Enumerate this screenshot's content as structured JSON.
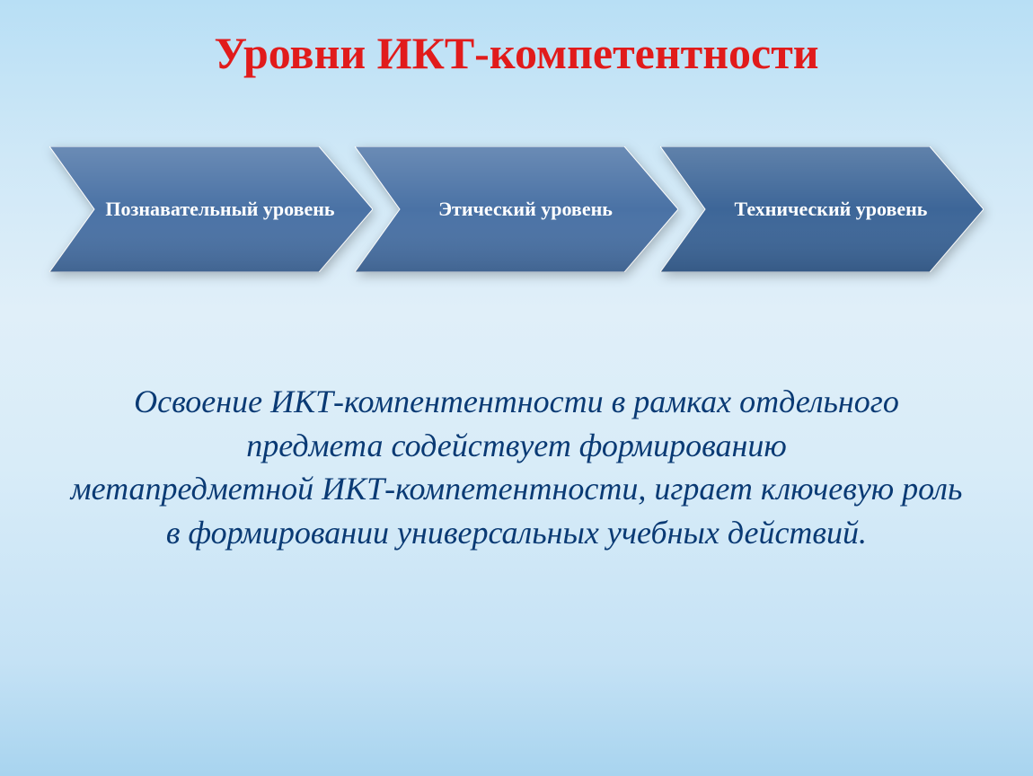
{
  "title": {
    "text": "Уровни ИКТ-компетентности",
    "color": "#e11b1b",
    "fontsize": 50
  },
  "arrows": {
    "items": [
      {
        "label": "Познавательный уровень",
        "fill": "#4a72a5"
      },
      {
        "label": "Этический уровень",
        "fill": "#4a72a5"
      },
      {
        "label": "Технический уровень",
        "fill": "#3d6698"
      }
    ],
    "label_color": "#ffffff",
    "label_fontsize": 22,
    "arrow_width": 360,
    "arrow_height": 140,
    "notch_depth": 50,
    "point_depth": 60,
    "overlap": 20
  },
  "body": {
    "text": "Освоение ИКТ-компентентности в рамках отдельного предмета содействует формированию\nметапредметной ИКТ-компетентности, играет ключевую роль в формировании универсальных учебных действий.",
    "color": "#0a3a74",
    "fontsize": 36
  },
  "background": {
    "gradient_top": "#b8dff5",
    "gradient_bottom": "#a8d4ef"
  }
}
